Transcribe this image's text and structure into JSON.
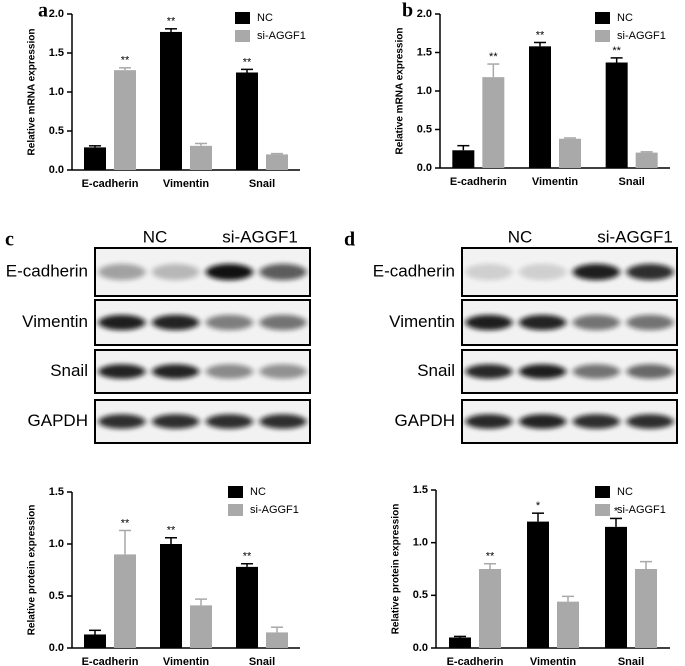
{
  "chart_data": [
    {
      "type": "bar",
      "panel": "a",
      "y_label": "Relative mRNA expression",
      "categories": [
        "E-cadherin",
        "Vimentin",
        "Snail"
      ],
      "series": [
        {
          "name": "NC",
          "color": "#000000",
          "values": [
            0.29,
            1.77,
            1.25
          ],
          "errors": [
            0.02,
            0.04,
            0.04
          ],
          "significance": [
            null,
            "**",
            "**"
          ]
        },
        {
          "name": "si-AGGF1",
          "color": "#a9a9a9",
          "values": [
            1.28,
            0.31,
            0.2
          ],
          "errors": [
            0.03,
            0.03,
            0.01
          ],
          "significance": [
            "**",
            null,
            null
          ]
        }
      ],
      "ylim": [
        0,
        2
      ],
      "yticks": [
        {
          "value": 0,
          "label": "0.0"
        },
        0.5,
        {
          "value": 1,
          "label": "1.0"
        },
        1.5,
        {
          "value": 2,
          "label": "2.0"
        }
      ],
      "grid": false
    },
    {
      "type": "bar",
      "panel": "b",
      "y_label": "Relative mRNA expression",
      "categories": [
        "E-cadherin",
        "Vimentin",
        "Snail"
      ],
      "series": [
        {
          "name": "NC",
          "color": "#000000",
          "values": [
            0.23,
            1.58,
            1.37
          ],
          "errors": [
            0.06,
            0.05,
            0.06
          ],
          "significance": [
            null,
            "**",
            "**"
          ]
        },
        {
          "name": "si-AGGF1",
          "color": "#a9a9a9",
          "values": [
            1.18,
            0.38,
            0.2
          ],
          "errors": [
            0.17,
            0.01,
            0.01
          ],
          "significance": [
            "**",
            null,
            null
          ]
        }
      ],
      "ylim": [
        0,
        2
      ],
      "yticks": [
        {
          "value": 0,
          "label": "0.0"
        },
        0.5,
        {
          "value": 1,
          "label": "1.0"
        },
        1.5,
        {
          "value": 2,
          "label": "2.0"
        }
      ],
      "grid": false
    },
    {
      "type": "bar",
      "y_label": "Relative protein expression",
      "categories": [
        "E-cadherin",
        "Vimentin",
        "Snail"
      ],
      "series": [
        {
          "name": "NC",
          "color": "#000000",
          "values": [
            0.13,
            1.0,
            0.78
          ],
          "errors": [
            0.04,
            0.06,
            0.03
          ],
          "significance": [
            null,
            "**",
            "**"
          ]
        },
        {
          "name": "si-AGGF1",
          "color": "#a9a9a9",
          "values": [
            0.9,
            0.41,
            0.15
          ],
          "errors": [
            0.23,
            0.06,
            0.05
          ],
          "significance": [
            "**",
            null,
            null
          ]
        }
      ],
      "ylim": [
        0,
        1.5
      ],
      "yticks": [
        {
          "value": 0,
          "label": "0.0"
        },
        0.5,
        {
          "value": 1,
          "label": "1.0"
        },
        1.5
      ],
      "grid": false
    },
    {
      "type": "bar",
      "y_label": "Relative protein expression",
      "categories": [
        "E-cadherin",
        "Vimentin",
        "Snail"
      ],
      "series": [
        {
          "name": "NC",
          "color": "#000000",
          "values": [
            0.1,
            1.2,
            1.15
          ],
          "errors": [
            0.01,
            0.08,
            0.08
          ],
          "significance": [
            null,
            "*",
            "*"
          ]
        },
        {
          "name": "si-AGGF1",
          "color": "#a9a9a9",
          "values": [
            0.75,
            0.44,
            0.75
          ],
          "errors": [
            0.05,
            0.05,
            0.07
          ],
          "significance": [
            "**",
            null,
            null
          ]
        }
      ],
      "ylim": [
        0,
        1.5
      ],
      "yticks": [
        {
          "value": 0,
          "label": "0.0"
        },
        0.5,
        {
          "value": 1,
          "label": "1.0"
        },
        1.5
      ],
      "grid": false
    }
  ],
  "blots": [
    {
      "letter": "c",
      "groups": [
        "NC",
        "si-AGGF1"
      ],
      "rows": [
        "E-cadherin",
        "Vimentin",
        "Snail",
        "GAPDH"
      ]
    },
    {
      "letter": "d",
      "groups": [
        "NC",
        "si-AGGF1"
      ],
      "rows": [
        "E-cadherin",
        "Vimentin",
        "Snail",
        "GAPDH"
      ]
    }
  ]
}
